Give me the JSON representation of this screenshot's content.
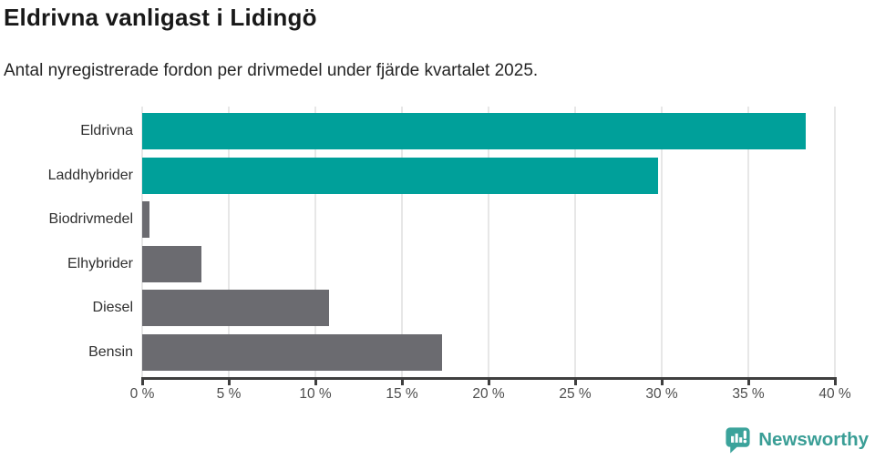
{
  "header": {
    "title": "Eldrivna vanligast i Lidingö",
    "subtitle": "Antal nyregistrerade fordon per drivmedel under fjärde kvartalet 2025."
  },
  "chart_data": {
    "type": "bar",
    "orientation": "horizontal",
    "title": "Eldrivna vanligast i Lidingö",
    "subtitle": "Antal nyregistrerade fordon per drivmedel under fjärde kvartalet 2025.",
    "categories": [
      "Eldrivna",
      "Laddhybrider",
      "Biodrivmedel",
      "Elhybrider",
      "Diesel",
      "Bensin"
    ],
    "values": [
      38.3,
      29.8,
      0.4,
      3.4,
      10.8,
      17.3
    ],
    "unit": "%",
    "bar_colors": [
      "#00a09a",
      "#00a09a",
      "#6b6b70",
      "#6b6b70",
      "#6b6b70",
      "#6b6b70"
    ],
    "xlabel": "",
    "ylabel": "",
    "xlim": [
      0,
      40
    ],
    "x_ticks": [
      0,
      5,
      10,
      15,
      20,
      25,
      30,
      35,
      40
    ],
    "x_tick_labels": [
      "0 %",
      "5 %",
      "10 %",
      "15 %",
      "20 %",
      "25 %",
      "30 %",
      "35 %",
      "40 %"
    ],
    "grid": "vertical-behind-bars",
    "legend": "none"
  },
  "colors": {
    "accent_teal": "#00a09a",
    "neutral_gray": "#6b6b70",
    "gridline": "#e7e7e7",
    "axis": "#3f3f3f",
    "logo_teal": "#3ba39b"
  },
  "footer": {
    "brand": "Newsworthy"
  }
}
